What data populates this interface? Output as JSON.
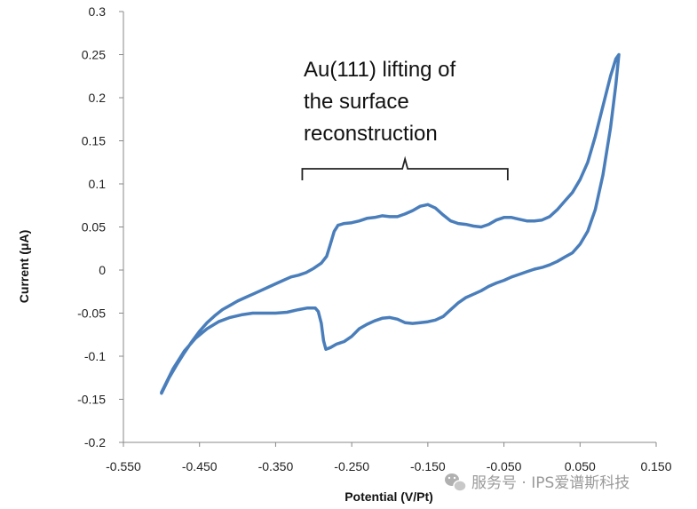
{
  "chart_data": {
    "type": "line",
    "title": "",
    "xlabel": "Potential (V/Pt)",
    "ylabel": "Current (μA)",
    "xlim": [
      -0.55,
      0.15
    ],
    "ylim": [
      -0.2,
      0.3
    ],
    "x_ticks": [
      "-0.550",
      "-0.450",
      "-0.350",
      "-0.250",
      "-0.150",
      "-0.050",
      "0.050",
      "0.150"
    ],
    "y_ticks": [
      "0.3",
      "0.25",
      "0.2",
      "0.15",
      "0.1",
      "0.05",
      "0",
      "-0.05",
      "-0.1",
      "-0.15",
      "-0.2"
    ],
    "grid": false,
    "series_color": "#4a7ebb",
    "annotation": {
      "lines": [
        "Au(111) lifting of",
        "the surface",
        "reconstruction"
      ],
      "bracket_range": [
        -0.315,
        -0.045
      ]
    },
    "series": [
      {
        "points": [
          [
            -0.5,
            -0.142
          ],
          [
            -0.485,
            -0.115
          ],
          [
            -0.47,
            -0.094
          ],
          [
            -0.455,
            -0.079
          ],
          [
            -0.44,
            -0.068
          ],
          [
            -0.425,
            -0.06
          ],
          [
            -0.41,
            -0.055
          ],
          [
            -0.395,
            -0.052
          ],
          [
            -0.38,
            -0.05
          ],
          [
            -0.365,
            -0.05
          ],
          [
            -0.35,
            -0.05
          ],
          [
            -0.335,
            -0.049
          ],
          [
            -0.32,
            -0.046
          ],
          [
            -0.308,
            -0.044
          ],
          [
            -0.298,
            -0.044
          ],
          [
            -0.294,
            -0.048
          ],
          [
            -0.29,
            -0.062
          ],
          [
            -0.287,
            -0.082
          ],
          [
            -0.284,
            -0.092
          ],
          [
            -0.278,
            -0.09
          ],
          [
            -0.27,
            -0.086
          ],
          [
            -0.26,
            -0.083
          ],
          [
            -0.25,
            -0.077
          ],
          [
            -0.24,
            -0.068
          ],
          [
            -0.23,
            -0.063
          ],
          [
            -0.22,
            -0.059
          ],
          [
            -0.21,
            -0.056
          ],
          [
            -0.2,
            -0.055
          ],
          [
            -0.19,
            -0.057
          ],
          [
            -0.18,
            -0.061
          ],
          [
            -0.17,
            -0.062
          ],
          [
            -0.16,
            -0.061
          ],
          [
            -0.15,
            -0.06
          ],
          [
            -0.14,
            -0.058
          ],
          [
            -0.13,
            -0.054
          ],
          [
            -0.12,
            -0.046
          ],
          [
            -0.11,
            -0.038
          ],
          [
            -0.1,
            -0.032
          ],
          [
            -0.09,
            -0.028
          ],
          [
            -0.08,
            -0.024
          ],
          [
            -0.07,
            -0.019
          ],
          [
            -0.06,
            -0.015
          ],
          [
            -0.05,
            -0.012
          ],
          [
            -0.04,
            -0.008
          ],
          [
            -0.03,
            -0.005
          ],
          [
            -0.02,
            -0.002
          ],
          [
            -0.01,
            0.001
          ],
          [
            0.0,
            0.003
          ],
          [
            0.01,
            0.006
          ],
          [
            0.02,
            0.01
          ],
          [
            0.03,
            0.015
          ],
          [
            0.04,
            0.02
          ],
          [
            0.05,
            0.03
          ],
          [
            0.06,
            0.045
          ],
          [
            0.07,
            0.07
          ],
          [
            0.08,
            0.11
          ],
          [
            0.09,
            0.165
          ],
          [
            0.097,
            0.215
          ],
          [
            0.101,
            0.25
          ],
          [
            0.097,
            0.245
          ],
          [
            0.09,
            0.225
          ],
          [
            0.08,
            0.19
          ],
          [
            0.07,
            0.155
          ],
          [
            0.06,
            0.125
          ],
          [
            0.05,
            0.105
          ],
          [
            0.04,
            0.09
          ],
          [
            0.03,
            0.08
          ],
          [
            0.02,
            0.07
          ],
          [
            0.01,
            0.062
          ],
          [
            0.0,
            0.058
          ],
          [
            -0.01,
            0.057
          ],
          [
            -0.02,
            0.057
          ],
          [
            -0.03,
            0.059
          ],
          [
            -0.04,
            0.061
          ],
          [
            -0.05,
            0.061
          ],
          [
            -0.06,
            0.058
          ],
          [
            -0.07,
            0.053
          ],
          [
            -0.08,
            0.05
          ],
          [
            -0.09,
            0.051
          ],
          [
            -0.1,
            0.053
          ],
          [
            -0.11,
            0.054
          ],
          [
            -0.12,
            0.057
          ],
          [
            -0.13,
            0.064
          ],
          [
            -0.14,
            0.072
          ],
          [
            -0.15,
            0.076
          ],
          [
            -0.16,
            0.074
          ],
          [
            -0.17,
            0.069
          ],
          [
            -0.18,
            0.065
          ],
          [
            -0.19,
            0.062
          ],
          [
            -0.2,
            0.062
          ],
          [
            -0.21,
            0.063
          ],
          [
            -0.22,
            0.061
          ],
          [
            -0.23,
            0.06
          ],
          [
            -0.24,
            0.057
          ],
          [
            -0.25,
            0.055
          ],
          [
            -0.26,
            0.054
          ],
          [
            -0.268,
            0.052
          ],
          [
            -0.273,
            0.045
          ],
          [
            -0.278,
            0.03
          ],
          [
            -0.283,
            0.016
          ],
          [
            -0.29,
            0.008
          ],
          [
            -0.3,
            0.002
          ],
          [
            -0.31,
            -0.003
          ],
          [
            -0.32,
            -0.006
          ],
          [
            -0.33,
            -0.008
          ],
          [
            -0.34,
            -0.012
          ],
          [
            -0.35,
            -0.016
          ],
          [
            -0.36,
            -0.02
          ],
          [
            -0.37,
            -0.024
          ],
          [
            -0.38,
            -0.028
          ],
          [
            -0.39,
            -0.032
          ],
          [
            -0.4,
            -0.036
          ],
          [
            -0.41,
            -0.041
          ],
          [
            -0.42,
            -0.046
          ],
          [
            -0.43,
            -0.053
          ],
          [
            -0.44,
            -0.061
          ],
          [
            -0.45,
            -0.071
          ],
          [
            -0.46,
            -0.083
          ],
          [
            -0.47,
            -0.096
          ],
          [
            -0.48,
            -0.11
          ],
          [
            -0.49,
            -0.125
          ],
          [
            -0.5,
            -0.143
          ]
        ]
      }
    ]
  },
  "watermark": {
    "icon": "wechat-icon",
    "text": "服务号 · IPS爱谱斯科技"
  }
}
